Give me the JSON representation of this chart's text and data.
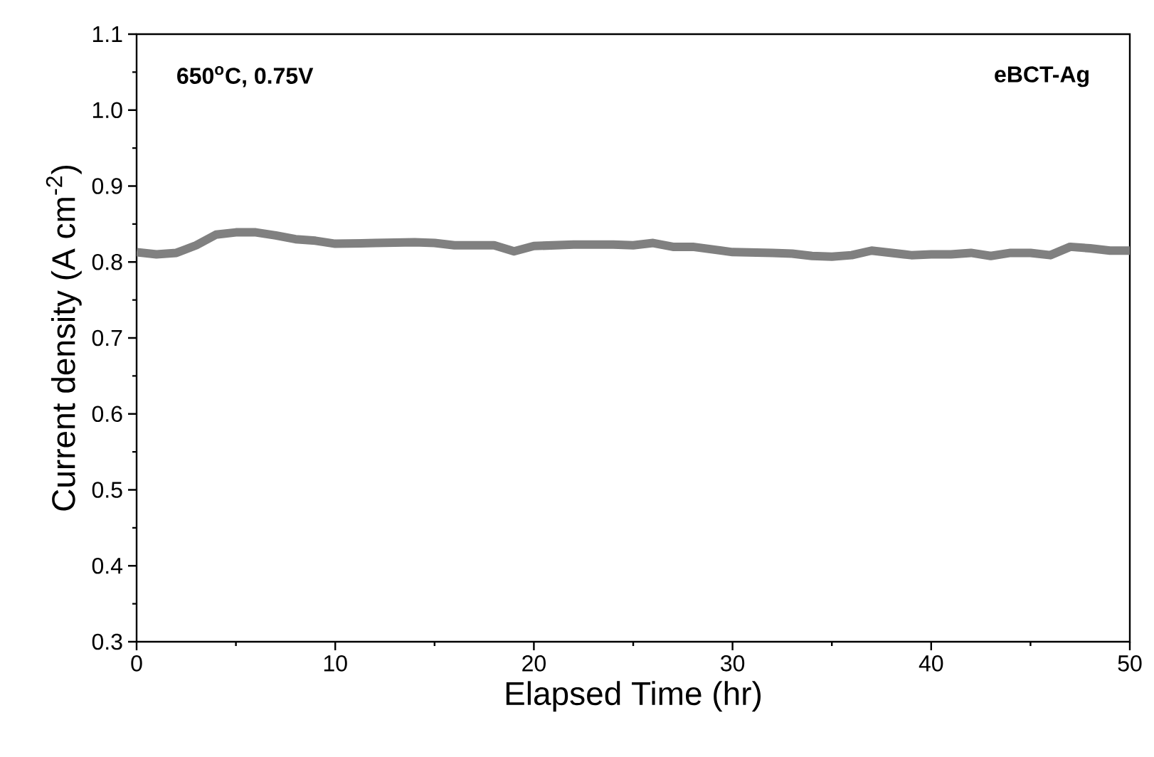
{
  "chart_data": {
    "type": "line",
    "xlabel": "Elapsed Time (hr)",
    "ylabel": "Current density (A cm$^{-2}$)",
    "annotations": [
      "650$^{o}$C, 0.75V",
      "eBCT-Ag"
    ],
    "x": [
      0,
      1,
      2,
      3,
      4,
      5,
      6,
      7,
      8,
      9,
      10,
      12,
      14,
      15,
      16,
      18,
      19,
      20,
      22,
      24,
      25,
      26,
      27,
      28,
      30,
      32,
      33,
      34,
      35,
      36,
      37,
      38,
      39,
      40,
      41,
      42,
      43,
      44,
      45,
      46,
      47,
      48,
      49,
      50
    ],
    "series": [
      {
        "color": "#808080",
        "values": [
          0.813,
          0.81,
          0.812,
          0.822,
          0.836,
          0.839,
          0.839,
          0.835,
          0.83,
          0.828,
          0.824,
          0.825,
          0.826,
          0.825,
          0.822,
          0.822,
          0.814,
          0.821,
          0.823,
          0.823,
          0.822,
          0.825,
          0.82,
          0.82,
          0.813,
          0.812,
          0.811,
          0.808,
          0.807,
          0.809,
          0.815,
          0.812,
          0.809,
          0.81,
          0.81,
          0.812,
          0.808,
          0.812,
          0.812,
          0.809,
          0.82,
          0.818,
          0.815,
          0.815
        ]
      }
    ],
    "xlim": [
      0,
      50
    ],
    "xticks": [
      0,
      10,
      20,
      30,
      40,
      50
    ],
    "ylim": [
      0.3,
      1.1
    ],
    "yticks": [
      {
        "value": 0.3,
        "label": "0.3"
      },
      {
        "value": 0.4,
        "label": "0.4"
      },
      {
        "value": 0.5,
        "label": "0.5"
      },
      {
        "value": 0.6,
        "label": "0.6"
      },
      {
        "value": 0.7,
        "label": "0.7"
      },
      {
        "value": 0.8,
        "label": "0.8"
      },
      {
        "value": 0.9,
        "label": "0.9"
      },
      {
        "value": 1.0,
        "label": "1.0"
      },
      {
        "value": 1.1,
        "label": "1.1"
      }
    ],
    "grid": false,
    "marker": "none",
    "line_style": "solid"
  }
}
